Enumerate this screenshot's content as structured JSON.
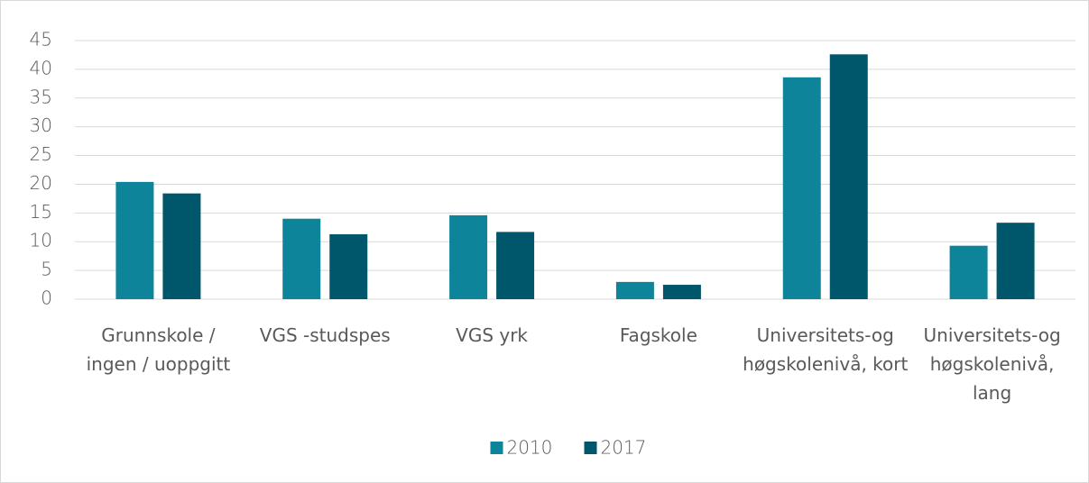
{
  "chart_data": {
    "type": "bar",
    "categories": [
      "Grunnskole / ingen / uoppgitt",
      "VGS -studspes",
      "VGS yrk",
      "Fagskole",
      "Universitets-og høgskolenivå, kort",
      "Universitets-og høgskolenivå, lang"
    ],
    "series": [
      {
        "name": "2010",
        "color": "#0e849b",
        "values": [
          20.4,
          14.0,
          14.6,
          3.0,
          38.6,
          9.3
        ]
      },
      {
        "name": "2017",
        "color": "#00566a",
        "values": [
          18.4,
          11.3,
          11.7,
          2.5,
          42.6,
          13.3
        ]
      }
    ],
    "ylim": [
      0,
      45
    ],
    "yticks": [
      0,
      5,
      10,
      15,
      20,
      25,
      30,
      35,
      40,
      45
    ],
    "grid": true,
    "legend": "bottom"
  }
}
